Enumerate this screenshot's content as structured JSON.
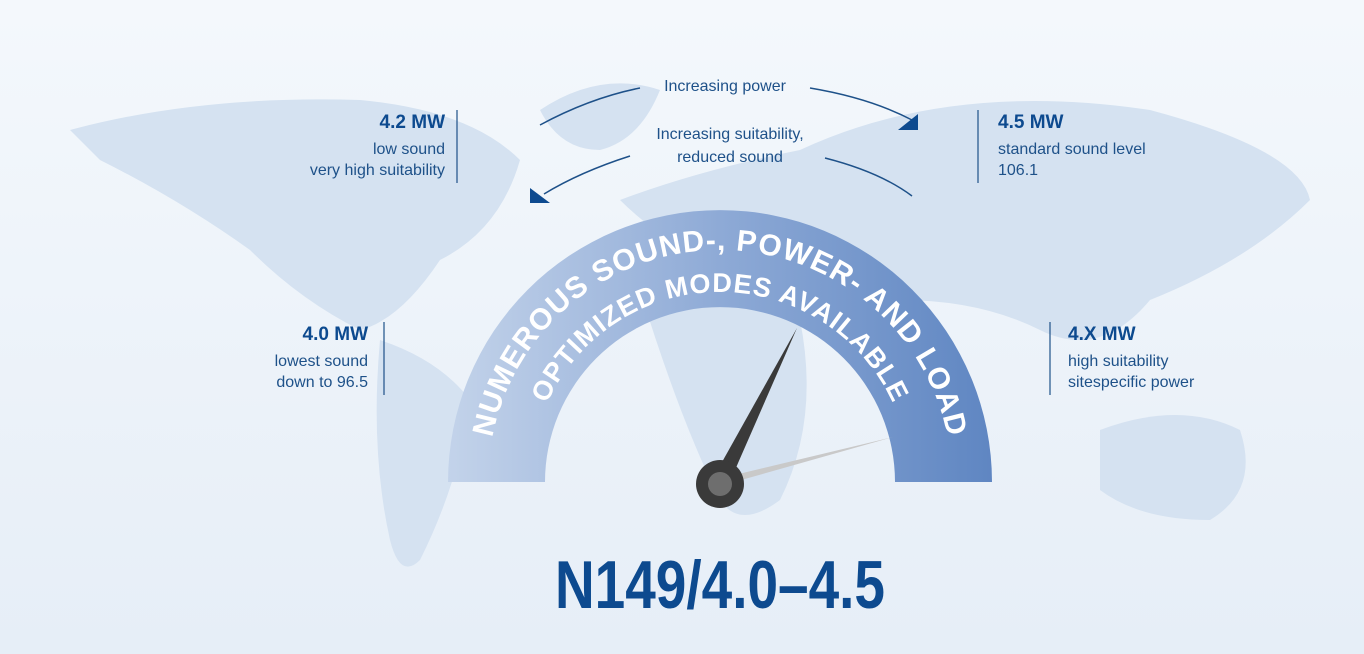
{
  "arrows": {
    "power": "Increasing power",
    "suitability": [
      "Increasing suitability,",
      "reduced sound"
    ]
  },
  "modes": [
    {
      "power": "4.2 MW",
      "lines": [
        "low sound",
        "very high suitability"
      ]
    },
    {
      "power": "4.5 MW",
      "lines": [
        "standard sound level",
        "106.1"
      ]
    },
    {
      "power": "4.0 MW",
      "lines": [
        "lowest sound",
        "down to 96.5"
      ]
    },
    {
      "power": "4.X MW",
      "lines": [
        "high suitability",
        "sitespecific power"
      ]
    }
  ],
  "gauge": {
    "lines": [
      "NUMEROUS SOUND-, POWER- AND LOAD",
      "OPTIMIZED MODES AVAILABLE"
    ]
  },
  "title": "N149/4.0–4.5"
}
